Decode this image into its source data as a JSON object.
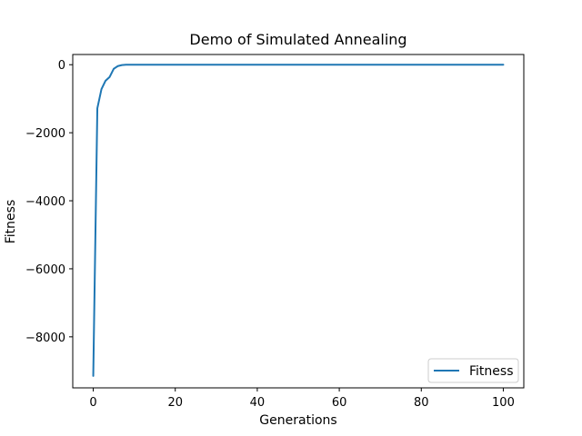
{
  "chart_data": {
    "type": "line",
    "title": "Demo of Simulated Annealing",
    "xlabel": "Generations",
    "ylabel": "Fitness",
    "xlim": [
      -5,
      105
    ],
    "ylim": [
      -9500,
      300
    ],
    "xticks": [
      0,
      20,
      40,
      60,
      80,
      100
    ],
    "yticks": [
      -8000,
      -6000,
      -4000,
      -2000,
      0
    ],
    "xtick_labels": [
      "0",
      "20",
      "40",
      "60",
      "80",
      "100"
    ],
    "ytick_labels": [
      "−8000",
      "−6000",
      "−4000",
      "−2000",
      "0"
    ],
    "grid": false,
    "legend": {
      "position": "lower right",
      "entries": [
        "Fitness"
      ]
    },
    "series": [
      {
        "name": "Fitness",
        "color": "#1f77b4",
        "x": [
          0,
          1,
          2,
          3,
          4,
          5,
          6,
          7,
          8,
          9,
          10,
          15,
          20,
          30,
          40,
          50,
          60,
          70,
          80,
          90,
          100
        ],
        "y": [
          -9150,
          -1280,
          -720,
          -470,
          -360,
          -120,
          -40,
          -10,
          0,
          0,
          0,
          0,
          0,
          0,
          0,
          0,
          0,
          0,
          0,
          0,
          0
        ]
      }
    ]
  }
}
